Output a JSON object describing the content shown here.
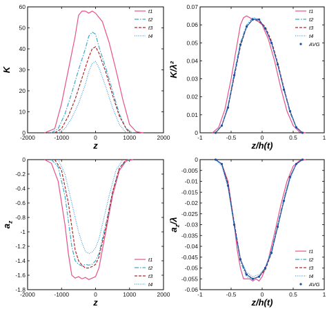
{
  "colors": {
    "t1": "#e8508a",
    "t2": "#3aa9c9",
    "t3": "#b0262a",
    "t4": "#3d9be0",
    "avg": "#1c4fa3",
    "axis": "#000000"
  },
  "chart_data": [
    {
      "type": "line",
      "panel": "top-left",
      "title": "",
      "xlabel": "z",
      "ylabel": "K",
      "xlim": [
        -2000,
        2000
      ],
      "ylim": [
        0,
        60
      ],
      "xticks": [
        "-2000",
        "-1000",
        "0",
        "1000",
        "2000"
      ],
      "yticks": [
        "0",
        "10",
        "20",
        "30",
        "40",
        "50",
        "60"
      ],
      "legend": "top-right",
      "series": [
        {
          "name": "t1",
          "style": "solid",
          "x": [
            -1500,
            -1200,
            -1000,
            -800,
            -600,
            -500,
            -400,
            -300,
            -200,
            -100,
            0,
            200,
            400,
            600,
            800,
            1000,
            1200,
            1400
          ],
          "y": [
            0,
            2,
            14,
            30,
            46,
            56,
            58,
            58,
            57,
            58,
            57,
            53,
            43,
            30,
            16,
            4,
            0.5,
            0
          ]
        },
        {
          "name": "t2",
          "style": "dashdot",
          "x": [
            -1300,
            -1100,
            -900,
            -700,
            -500,
            -300,
            -200,
            -100,
            0,
            100,
            300,
            500,
            700,
            900,
            1100
          ],
          "y": [
            0,
            2,
            9,
            19,
            30,
            40,
            46,
            48,
            47,
            41,
            31,
            20,
            9,
            2,
            0
          ]
        },
        {
          "name": "t3",
          "style": "dashed",
          "x": [
            -1200,
            -1000,
            -800,
            -600,
            -400,
            -200,
            -100,
            0,
            100,
            300,
            500,
            700,
            900,
            1000
          ],
          "y": [
            0,
            2,
            8,
            16,
            26,
            36,
            40,
            41,
            38,
            29,
            18,
            8,
            2,
            0
          ]
        },
        {
          "name": "t4",
          "style": "dotted",
          "x": [
            -1100,
            -900,
            -700,
            -500,
            -300,
            -200,
            -100,
            0,
            100,
            300,
            500,
            700,
            900
          ],
          "y": [
            0,
            2,
            7,
            14,
            23,
            29,
            33,
            34,
            31,
            22,
            12,
            4,
            0
          ]
        }
      ]
    },
    {
      "type": "line",
      "panel": "top-right",
      "title": "",
      "xlabel": "z/h(t)",
      "ylabel": "K/λ²",
      "xlim": [
        -1,
        1
      ],
      "ylim": [
        0,
        0.07
      ],
      "xticks": [
        "-1",
        "-0.5",
        "0",
        "0.5",
        "1"
      ],
      "yticks": [
        "0",
        "0.01",
        "0.02",
        "0.03",
        "0.04",
        "0.05",
        "0.06",
        "0.07"
      ],
      "legend": "top-right",
      "series": [
        {
          "name": "t1",
          "style": "solid",
          "x": [
            -0.8,
            -0.7,
            -0.6,
            -0.5,
            -0.4,
            -0.35,
            -0.3,
            -0.25,
            -0.2,
            -0.15,
            -0.1,
            0,
            0.1,
            0.2,
            0.3,
            0.4,
            0.5,
            0.6,
            0.7
          ],
          "y": [
            0,
            0.003,
            0.013,
            0.03,
            0.05,
            0.06,
            0.064,
            0.065,
            0.064,
            0.063,
            0.063,
            0.06,
            0.052,
            0.04,
            0.025,
            0.012,
            0.004,
            0.0005,
            0
          ]
        },
        {
          "name": "t2",
          "style": "dashdot",
          "x": [
            -0.75,
            -0.65,
            -0.55,
            -0.45,
            -0.35,
            -0.25,
            -0.15,
            -0.05,
            0.05,
            0.15,
            0.25,
            0.35,
            0.45,
            0.55,
            0.65
          ],
          "y": [
            0,
            0.004,
            0.015,
            0.033,
            0.05,
            0.06,
            0.064,
            0.063,
            0.058,
            0.05,
            0.038,
            0.024,
            0.011,
            0.003,
            0
          ]
        },
        {
          "name": "t3",
          "style": "dashed",
          "x": [
            -0.75,
            -0.65,
            -0.55,
            -0.45,
            -0.35,
            -0.25,
            -0.15,
            -0.05,
            0.05,
            0.15,
            0.25,
            0.35,
            0.45,
            0.55,
            0.65
          ],
          "y": [
            0,
            0.004,
            0.014,
            0.031,
            0.048,
            0.059,
            0.063,
            0.062,
            0.059,
            0.051,
            0.039,
            0.025,
            0.012,
            0.003,
            0
          ]
        },
        {
          "name": "t4",
          "style": "dotted",
          "x": [
            -0.75,
            -0.65,
            -0.55,
            -0.45,
            -0.35,
            -0.25,
            -0.15,
            -0.05,
            0.05,
            0.15,
            0.25,
            0.35,
            0.45,
            0.55,
            0.65
          ],
          "y": [
            0,
            0.004,
            0.015,
            0.032,
            0.049,
            0.059,
            0.064,
            0.063,
            0.058,
            0.05,
            0.038,
            0.025,
            0.012,
            0.003,
            0
          ]
        },
        {
          "name": "AVG",
          "style": "markers",
          "x": [
            -0.75,
            -0.65,
            -0.55,
            -0.45,
            -0.35,
            -0.25,
            -0.15,
            -0.05,
            0.05,
            0.15,
            0.25,
            0.35,
            0.45,
            0.55,
            0.65
          ],
          "y": [
            0,
            0.004,
            0.014,
            0.032,
            0.049,
            0.059,
            0.063,
            0.063,
            0.058,
            0.05,
            0.038,
            0.024,
            0.012,
            0.003,
            0
          ]
        }
      ]
    },
    {
      "type": "line",
      "panel": "bottom-left",
      "title": "",
      "xlabel": "z",
      "ylabel": "a_z",
      "xlim": [
        -2000,
        2000
      ],
      "ylim": [
        -1.8,
        0
      ],
      "xticks": [
        "-2000",
        "-1000",
        "0",
        "1000",
        "2000"
      ],
      "yticks": [
        "0",
        "-0.2",
        "-0.4",
        "-0.6",
        "-0.8",
        "-1",
        "-1.2",
        "-1.4",
        "-1.6",
        "-1.8"
      ],
      "legend": "bottom-right",
      "series": [
        {
          "name": "t1",
          "style": "solid",
          "x": [
            -1500,
            -1300,
            -1100,
            -900,
            -800,
            -700,
            -600,
            -500,
            -400,
            -300,
            -200,
            -100,
            0,
            100,
            300,
            500,
            700,
            900,
            1100
          ],
          "y": [
            0,
            -0.05,
            -0.3,
            -0.9,
            -1.3,
            -1.6,
            -1.64,
            -1.62,
            -1.65,
            -1.63,
            -1.66,
            -1.64,
            -1.62,
            -1.5,
            -1.0,
            -0.5,
            -0.15,
            -0.02,
            0
          ]
        },
        {
          "name": "t2",
          "style": "dashdot",
          "x": [
            -1300,
            -1100,
            -900,
            -700,
            -600,
            -500,
            -400,
            -300,
            -200,
            -100,
            0,
            100,
            300,
            500,
            700,
            900,
            1000
          ],
          "y": [
            0,
            -0.1,
            -0.5,
            -1.2,
            -1.4,
            -1.45,
            -1.47,
            -1.45,
            -1.46,
            -1.45,
            -1.4,
            -1.3,
            -0.9,
            -0.45,
            -0.12,
            -0.01,
            0
          ]
        },
        {
          "name": "t3",
          "style": "dashed",
          "x": [
            -1200,
            -1000,
            -800,
            -600,
            -500,
            -400,
            -300,
            -200,
            -100,
            0,
            100,
            300,
            500,
            700,
            900
          ],
          "y": [
            0,
            -0.15,
            -0.6,
            -1.25,
            -1.4,
            -1.46,
            -1.5,
            -1.5,
            -1.48,
            -1.45,
            -1.35,
            -0.95,
            -0.45,
            -0.12,
            0
          ]
        },
        {
          "name": "t4",
          "style": "dotted",
          "x": [
            -1100,
            -900,
            -700,
            -500,
            -400,
            -300,
            -200,
            -100,
            0,
            100,
            200,
            400,
            600,
            800
          ],
          "y": [
            0,
            -0.2,
            -0.6,
            -1.0,
            -1.15,
            -1.27,
            -1.3,
            -1.28,
            -1.22,
            -1.1,
            -0.9,
            -0.5,
            -0.15,
            0
          ]
        }
      ]
    },
    {
      "type": "line",
      "panel": "bottom-right",
      "title": "",
      "xlabel": "z/h(t)",
      "ylabel": "a_z/λ",
      "xlim": [
        -1,
        1
      ],
      "ylim": [
        -0.06,
        0
      ],
      "xticks": [
        "-1",
        "-0.5",
        "0",
        "0.5",
        "1"
      ],
      "yticks": [
        "0",
        "-0.005",
        "-0.01",
        "-0.015",
        "-0.02",
        "-0.025",
        "-0.03",
        "-0.035",
        "-0.04",
        "-0.045",
        "-0.05",
        "-0.055",
        "-0.06"
      ],
      "legend": "bottom-right",
      "series": [
        {
          "name": "t1",
          "style": "solid",
          "x": [
            -0.75,
            -0.65,
            -0.55,
            -0.45,
            -0.4,
            -0.35,
            -0.3,
            -0.25,
            -0.2,
            -0.15,
            -0.1,
            -0.05,
            0,
            0.1,
            0.2,
            0.3,
            0.4,
            0.5,
            0.6,
            0.7
          ],
          "y": [
            0,
            -0.002,
            -0.01,
            -0.03,
            -0.042,
            -0.05,
            -0.055,
            -0.055,
            -0.055,
            -0.056,
            -0.055,
            -0.056,
            -0.054,
            -0.046,
            -0.034,
            -0.021,
            -0.01,
            -0.003,
            -0.0005,
            0
          ]
        },
        {
          "name": "t2",
          "style": "dashdot",
          "x": [
            -0.75,
            -0.65,
            -0.55,
            -0.45,
            -0.35,
            -0.25,
            -0.15,
            -0.05,
            0.05,
            0.15,
            0.25,
            0.35,
            0.45,
            0.55,
            0.65
          ],
          "y": [
            0,
            -0.002,
            -0.012,
            -0.03,
            -0.047,
            -0.054,
            -0.055,
            -0.054,
            -0.05,
            -0.042,
            -0.03,
            -0.018,
            -0.008,
            -0.002,
            0
          ]
        },
        {
          "name": "t3",
          "style": "dashed",
          "x": [
            -0.75,
            -0.65,
            -0.55,
            -0.45,
            -0.35,
            -0.25,
            -0.15,
            -0.05,
            0.05,
            0.15,
            0.25,
            0.35,
            0.45,
            0.55,
            0.65
          ],
          "y": [
            0,
            -0.002,
            -0.011,
            -0.029,
            -0.046,
            -0.053,
            -0.055,
            -0.054,
            -0.051,
            -0.043,
            -0.031,
            -0.019,
            -0.008,
            -0.002,
            0
          ]
        },
        {
          "name": "t4",
          "style": "dotted",
          "x": [
            -0.75,
            -0.65,
            -0.55,
            -0.45,
            -0.35,
            -0.25,
            -0.15,
            -0.05,
            0.05,
            0.15,
            0.25,
            0.35,
            0.45,
            0.55,
            0.65
          ],
          "y": [
            0,
            -0.003,
            -0.013,
            -0.031,
            -0.046,
            -0.052,
            -0.054,
            -0.053,
            -0.05,
            -0.042,
            -0.031,
            -0.019,
            -0.009,
            -0.002,
            0
          ]
        },
        {
          "name": "AVG",
          "style": "markers",
          "x": [
            -0.75,
            -0.65,
            -0.55,
            -0.45,
            -0.35,
            -0.25,
            -0.15,
            -0.05,
            0.05,
            0.15,
            0.25,
            0.35,
            0.45,
            0.55,
            0.65
          ],
          "y": [
            0,
            -0.002,
            -0.012,
            -0.03,
            -0.046,
            -0.053,
            -0.055,
            -0.054,
            -0.05,
            -0.043,
            -0.031,
            -0.019,
            -0.008,
            -0.002,
            0
          ]
        }
      ]
    }
  ]
}
